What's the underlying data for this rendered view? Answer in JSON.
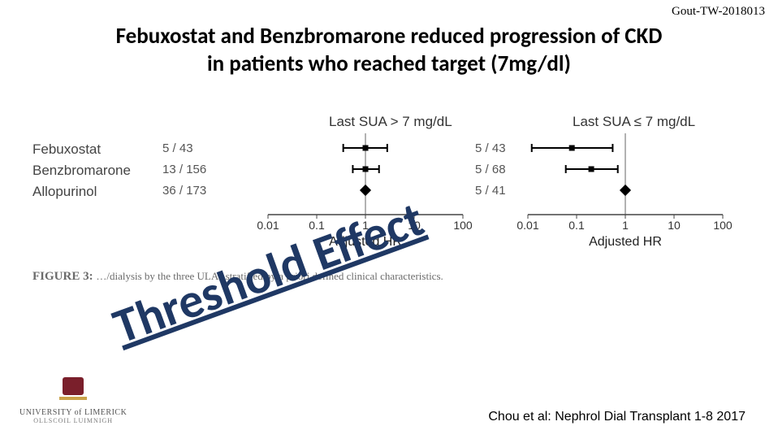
{
  "doc_code": "Gout-TW-2018013",
  "title_line1": "Febuxostat and Benzbromarone reduced progression of CKD",
  "title_line2": "in patients who reached target (7mg/dl)",
  "drug_rows": [
    {
      "name": "Febuxostat",
      "n1": "5",
      "d1": "43",
      "n2": "5",
      "d2": "43"
    },
    {
      "name": "Benzbromarone",
      "n1": "13",
      "d1": "156",
      "n2": "5",
      "d2": "68"
    },
    {
      "name": "Allopurinol",
      "n1": "36",
      "d1": "173",
      "n2": "5",
      "d2": "41"
    }
  ],
  "col_heads": {
    "left": "Last SUA > 7 mg/dL",
    "right": "Last SUA ≤ 7 mg/dL"
  },
  "axis_label": "Adjusted HR",
  "ticks": [
    "0.01",
    "0.1",
    "1",
    "10",
    "100"
  ],
  "left_plot": {
    "points": [
      {
        "y": 0,
        "x": 1.0,
        "lo": 0.35,
        "hi": 2.8
      },
      {
        "y": 1,
        "x": 1.0,
        "lo": 0.55,
        "hi": 1.9
      },
      {
        "y": 2,
        "x": 1.0,
        "lo": null,
        "hi": null,
        "ref": true
      }
    ],
    "marker_fill": "#000",
    "line_color": "#000"
  },
  "right_plot": {
    "points": [
      {
        "y": 0,
        "x": 0.08,
        "lo": 0.012,
        "hi": 0.55
      },
      {
        "y": 1,
        "x": 0.2,
        "lo": 0.06,
        "hi": 0.7
      },
      {
        "y": 2,
        "x": 1.0,
        "lo": null,
        "hi": null,
        "ref": true
      }
    ],
    "marker_fill": "#000",
    "line_color": "#000"
  },
  "plot_style": {
    "type": "forest",
    "xscale": "log",
    "xlim": [
      0.01,
      100
    ],
    "axis_color": "#444",
    "tick_fontsize": 14,
    "row_gap": 26,
    "marker_size": 7,
    "ref_line_color": "#666"
  },
  "figure_caption_prefix": "FIGURE 3:",
  "figure_caption_tail": " …/dialysis by the three ULAs stratified by a priori defined clinical characteristics.",
  "overlay_text": "Threshold Effect",
  "citation": "Chou et al: Nephrol Dial Transplant 1-8  2017",
  "logo": {
    "line1": "UNIVERSITY of LIMERICK",
    "line2": "OLLSCOIL  LUIMNIGH",
    "crest_color": "#7a1f2b",
    "gold": "#caa24a"
  }
}
